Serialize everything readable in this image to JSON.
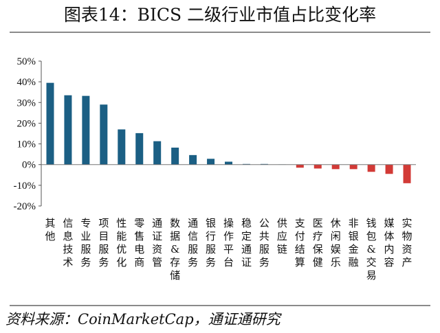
{
  "title": "图表14：BICS 二级行业市值占比变化率",
  "source": "资料来源：CoinMarketCap，通证通研究",
  "colors": {
    "positive": "#1b5f84",
    "negative": "#d23a36",
    "axis": "#555555"
  },
  "chart_data": {
    "type": "bar",
    "title": "图表14：BICS 二级行业市值占比变化率",
    "xlabel": "",
    "ylabel": "",
    "ylim": [
      -20,
      50
    ],
    "yticks": [
      -20,
      -10,
      0,
      10,
      20,
      30,
      40,
      50
    ],
    "ytick_labels": [
      "-20%",
      "-10%",
      "0%",
      "10%",
      "20%",
      "30%",
      "40%",
      "50%"
    ],
    "grid": false,
    "categories": [
      "其他",
      "信息技术",
      "专业服务",
      "项目服务",
      "性能优化",
      "零售电商",
      "通证资管",
      "数据&存储",
      "通信服务",
      "银行服务",
      "操作平台",
      "稳定通证",
      "公共服务",
      "供应链",
      "支付结算",
      "医疗保健",
      "休闲娱乐",
      "非银金融",
      "钱包&交易",
      "媒体内容",
      "实物资产"
    ],
    "values": [
      39.5,
      33.5,
      33.2,
      29.0,
      17.0,
      15.2,
      11.3,
      8.2,
      4.6,
      2.8,
      1.4,
      0.3,
      0.3,
      0.1,
      -1.5,
      -1.9,
      -2.2,
      -2.2,
      -3.5,
      -4.5,
      -9.0
    ]
  }
}
